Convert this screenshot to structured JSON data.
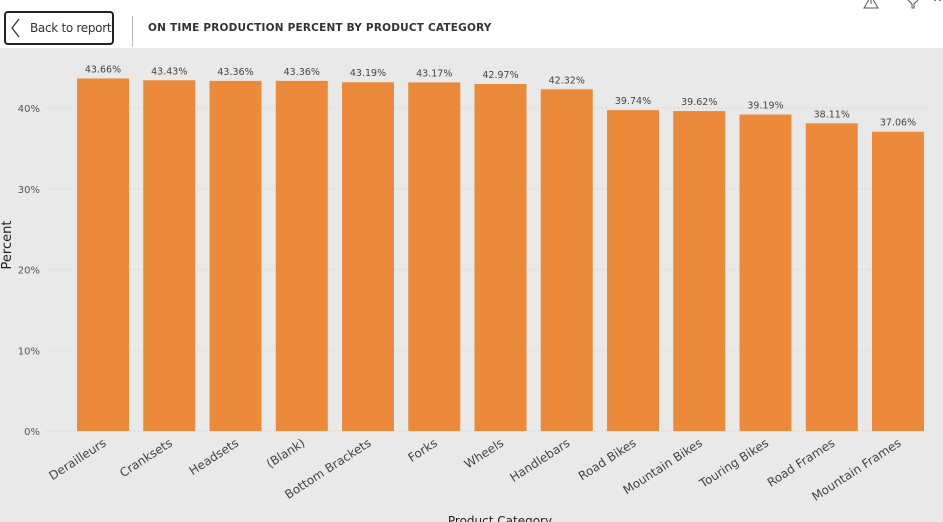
{
  "header": {
    "back_label": "Back to report",
    "title": "ON TIME PRODUCTION PERCENT BY PRODUCT CATEGORY",
    "icons": [
      "warning-icon",
      "filter-icon",
      "more-options-icon"
    ]
  },
  "chart_data": {
    "type": "bar",
    "title": "",
    "xlabel": "Product Category",
    "ylabel": "Percent",
    "ylim": [
      0,
      45
    ],
    "yticks": [
      0,
      10,
      20,
      30,
      40
    ],
    "ytick_labels": [
      "0%",
      "10%",
      "20%",
      "30%",
      "40%"
    ],
    "grid": true,
    "bar_color": "#ea8a3a",
    "categories": [
      "Derailleurs",
      "Cranksets",
      "Headsets",
      "(Blank)",
      "Bottom Brackets",
      "Forks",
      "Wheels",
      "Handlebars",
      "Road Bikes",
      "Mountain Bikes",
      "Touring Bikes",
      "Road Frames",
      "Mountain Frames"
    ],
    "values": [
      43.66,
      43.43,
      43.36,
      43.36,
      43.19,
      43.17,
      42.97,
      42.32,
      39.74,
      39.62,
      39.19,
      38.11,
      37.06
    ],
    "data_labels": [
      "43.66%",
      "43.43%",
      "43.36%",
      "43.36%",
      "43.19%",
      "43.17%",
      "42.97%",
      "42.32%",
      "39.74%",
      "39.62%",
      "39.19%",
      "38.11%",
      "37.06%"
    ]
  }
}
